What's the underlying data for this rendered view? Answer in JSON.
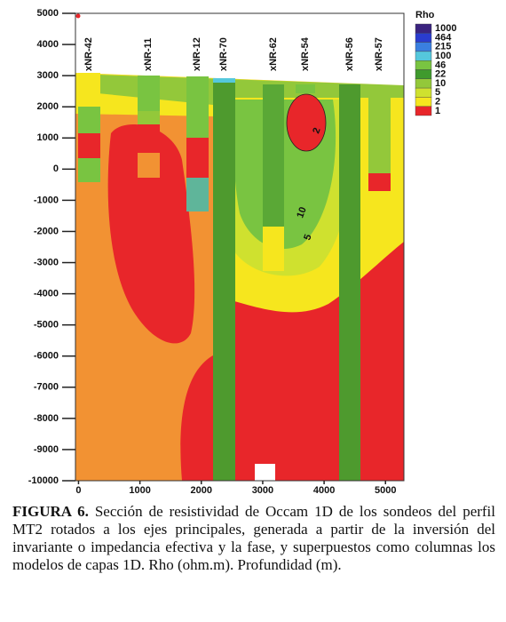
{
  "chart_data": {
    "type": "contour",
    "xlim": [
      -50,
      5300
    ],
    "xticks": [
      0,
      1000,
      2000,
      3000,
      4000,
      5000
    ],
    "ylim": [
      -10000,
      5000
    ],
    "yticks": [
      5000,
      4000,
      3000,
      2000,
      1000,
      0,
      -1000,
      -2000,
      -3000,
      -4000,
      -5000,
      -6000,
      -7000,
      -8000,
      -9000,
      -10000
    ],
    "stations": [
      "xNR-42",
      "xNR-11",
      "xNR-12",
      "xNR-70",
      "xNR-62",
      "xNR-54",
      "xNR-56",
      "xNR-57"
    ],
    "contour_labels": [
      2,
      10,
      5
    ],
    "colorbar": {
      "title": "Rho",
      "levels": [
        1000,
        464,
        215,
        100,
        46,
        22,
        10,
        5,
        2,
        1
      ],
      "colors": [
        "#3a237f",
        "#2a3ccf",
        "#3a7fe0",
        "#55c8dc",
        "#79c441",
        "#3f9a2d",
        "#93c83a",
        "#cfe12f",
        "#f6e61e",
        "#e8262a"
      ]
    }
  },
  "caption": {
    "label": "FIGURA 6.",
    "text": "Sección de resistividad de Occam 1D de los sondeos del perfil MT2 rotados a los ejes principales, generada a partir de la inversión del invariante o impedancia efectiva y la fase, y superpuestos como columnas los modelos de capas 1D. Rho (ohm.m). Profundidad (m)."
  }
}
